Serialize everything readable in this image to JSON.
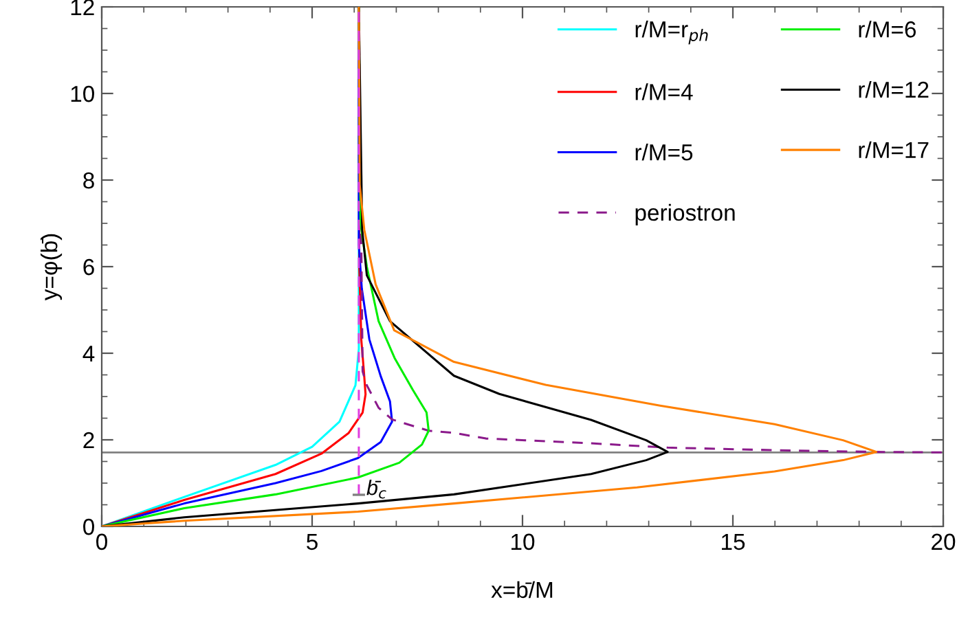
{
  "chart_data": {
    "type": "line",
    "xlabel": "x=b̄/M",
    "ylabel": "y=φ(b̄)",
    "xlim": [
      0,
      20
    ],
    "ylim": [
      0,
      12
    ],
    "xticks": [
      0,
      5,
      10,
      15,
      20
    ],
    "yticks": [
      0,
      2,
      4,
      6,
      8,
      10,
      12
    ],
    "grid": false,
    "legend": "top right",
    "marker": "none",
    "series": [
      {
        "name": "r/M=r$_{ph}$",
        "color": "#00ffff",
        "line_style": "solid",
        "x": [
          0,
          1.96,
          4.13,
          5.0,
          5.65,
          6.03,
          6.11,
          6.11
        ],
        "values": [
          0,
          0.68,
          1.42,
          1.84,
          2.42,
          3.26,
          4.1,
          12
        ]
      },
      {
        "name": "r/M=4",
        "color": "#ff0000",
        "line_style": "solid",
        "x": [
          0,
          1.96,
          4.13,
          5.22,
          5.87,
          6.2,
          6.27,
          6.23,
          6.17,
          6.12,
          6.11
        ],
        "values": [
          0,
          0.61,
          1.21,
          1.68,
          2.16,
          2.63,
          3.05,
          3.58,
          4.3,
          6.0,
          12
        ]
      },
      {
        "name": "r/M=5",
        "color": "#0000ff",
        "line_style": "solid",
        "x": [
          0,
          1.96,
          4.13,
          5.22,
          6.09,
          6.63,
          6.9,
          6.85,
          6.63,
          6.36,
          6.18,
          6.11,
          6.11
        ],
        "values": [
          0,
          0.53,
          1.0,
          1.28,
          1.58,
          1.95,
          2.42,
          2.89,
          3.47,
          4.32,
          5.5,
          6.5,
          12
        ]
      },
      {
        "name": "periostron",
        "color": "#8b1a8b",
        "line_style": "dashed",
        "x": [
          6.11,
          6.2,
          6.3,
          6.58,
          6.9,
          7.77,
          8.37,
          9.13,
          11.63,
          13.45,
          15.99,
          18.41,
          20
        ],
        "values": [
          12,
          3.58,
          3.26,
          2.74,
          2.47,
          2.21,
          2.16,
          2.03,
          1.92,
          1.82,
          1.76,
          1.72,
          1.71
        ]
      },
      {
        "name": "r/M=6",
        "color": "#00ee00",
        "line_style": "solid",
        "x": [
          0,
          1.96,
          4.13,
          6.09,
          7.07,
          7.61,
          7.77,
          7.72,
          7.39,
          6.96,
          6.58,
          6.3,
          6.15,
          6.11
        ],
        "values": [
          0,
          0.42,
          0.74,
          1.13,
          1.47,
          1.89,
          2.21,
          2.63,
          3.16,
          3.89,
          4.74,
          6.0,
          7.0,
          12
        ]
      },
      {
        "name": "r/M=12",
        "color": "#000000",
        "line_style": "solid",
        "x": [
          0,
          1.96,
          6.09,
          8.37,
          11.63,
          12.94,
          13.45,
          12.94,
          11.63,
          9.45,
          8.37,
          6.85,
          6.3,
          6.19,
          6.11
        ],
        "values": [
          0,
          0.21,
          0.53,
          0.74,
          1.21,
          1.53,
          1.72,
          1.99,
          2.46,
          3.06,
          3.48,
          4.74,
          5.8,
          6.85,
          12
        ]
      },
      {
        "name": "r/M=17",
        "color": "#ff8000",
        "line_style": "solid",
        "x": [
          0,
          1.96,
          6.09,
          8.37,
          12.72,
          15.99,
          17.62,
          18.41,
          17.62,
          15.99,
          13.27,
          10.55,
          8.37,
          6.95,
          6.51,
          6.24,
          6.13,
          6.11
        ],
        "values": [
          0,
          0.13,
          0.34,
          0.53,
          0.9,
          1.27,
          1.53,
          1.72,
          1.99,
          2.36,
          2.79,
          3.27,
          3.8,
          4.53,
          5.59,
          6.85,
          7.9,
          12
        ]
      },
      {
        "color": "#e040e0",
        "line_style": "dashed",
        "x": [
          6.11,
          6.11
        ],
        "values": [
          0.73,
          12
        ]
      }
    ],
    "ref_lines": [
      {
        "axis": "y",
        "value": 1.71,
        "color": "#808080",
        "line_style": "solid"
      }
    ],
    "annotations": [
      {
        "text": "b̄$_{c}$",
        "x": 6.11,
        "y": 0.73
      }
    ]
  }
}
